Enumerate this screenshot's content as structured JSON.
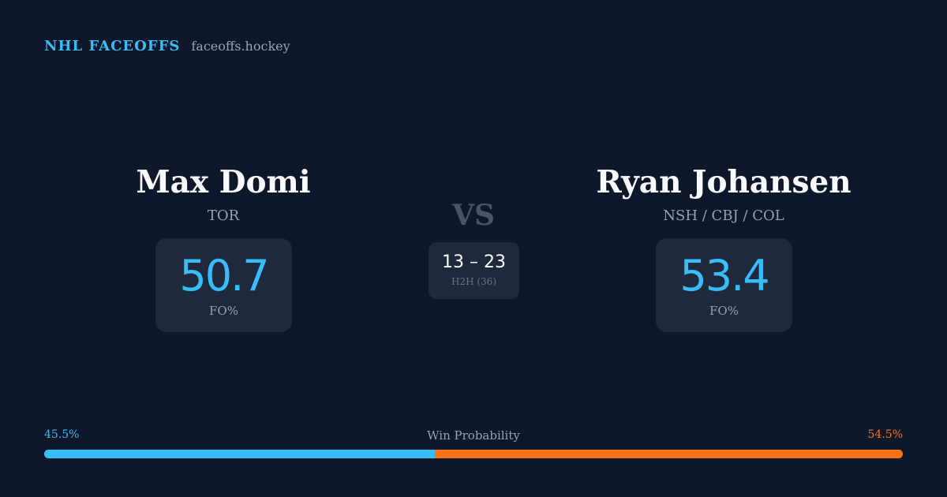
{
  "brand": {
    "title": "NHL FACEOFFS",
    "site": "faceoffs.hockey"
  },
  "players": {
    "left": {
      "name": "Max Domi",
      "team": "TOR",
      "fo_value": "50.7",
      "fo_label": "FO%"
    },
    "right": {
      "name": "Ryan Johansen",
      "team": "NSH / CBJ / COL",
      "fo_value": "53.4",
      "fo_label": "FO%"
    }
  },
  "matchup": {
    "vs": "VS",
    "h2h_score": "13 – 23",
    "h2h_label": "H2H (36)"
  },
  "probability": {
    "label": "Win Probability",
    "left_text": "45.5%",
    "right_text": "54.5%",
    "left_value": 45.5,
    "right_value": 54.5,
    "left_color": "#38bdf8",
    "right_color": "#f97316"
  },
  "colors": {
    "background": "#0f172a",
    "card": "#1e293b",
    "accent": "#38bdf8",
    "secondary_accent": "#f97316"
  }
}
